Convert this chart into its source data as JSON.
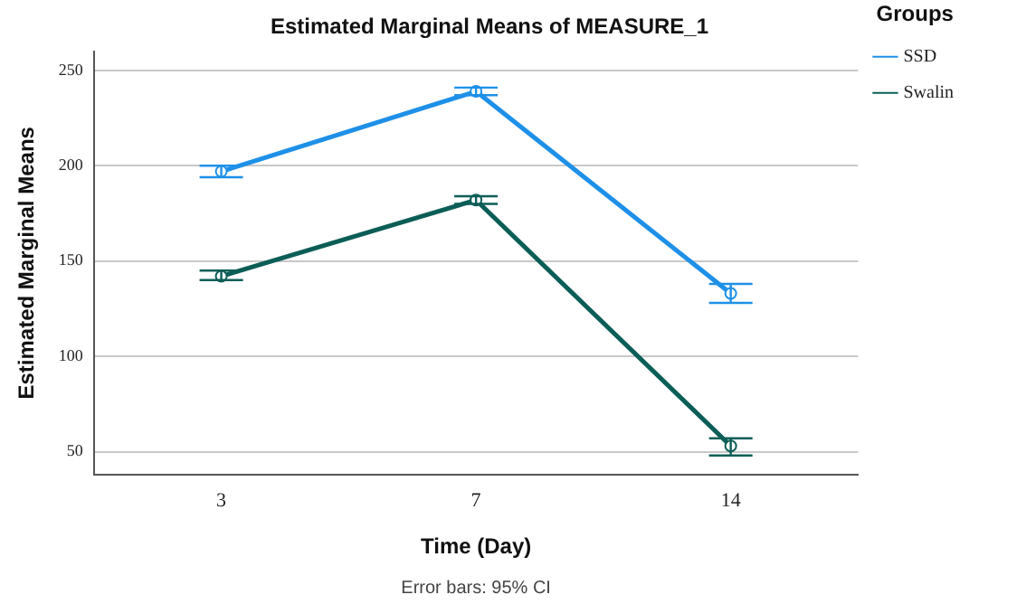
{
  "chart_data": {
    "type": "line",
    "title": "Estimated Marginal Means of MEASURE_1",
    "xlabel": "Time (Day)",
    "ylabel": "Estimated Marginal Means",
    "legend_title": "Groups",
    "categories": [
      "3",
      "7",
      "14"
    ],
    "series": [
      {
        "name": "SSD",
        "color": "#1e90e8",
        "values": [
          197,
          239,
          133
        ],
        "errors": [
          [
            194,
            200
          ],
          [
            237,
            241
          ],
          [
            128,
            138
          ]
        ]
      },
      {
        "name": "Swalin",
        "color": "#0b5e57",
        "values": [
          142,
          182,
          53
        ],
        "errors": [
          [
            140,
            145
          ],
          [
            180,
            184
          ],
          [
            48,
            57
          ]
        ]
      }
    ],
    "ylim": [
      38,
      260
    ],
    "yticks": [
      50,
      100,
      150,
      200,
      250
    ],
    "grid": "y",
    "legend": "top right",
    "marker": "circle",
    "line_style": "solid",
    "annotations": [
      "Error bars: 95% CI"
    ]
  }
}
